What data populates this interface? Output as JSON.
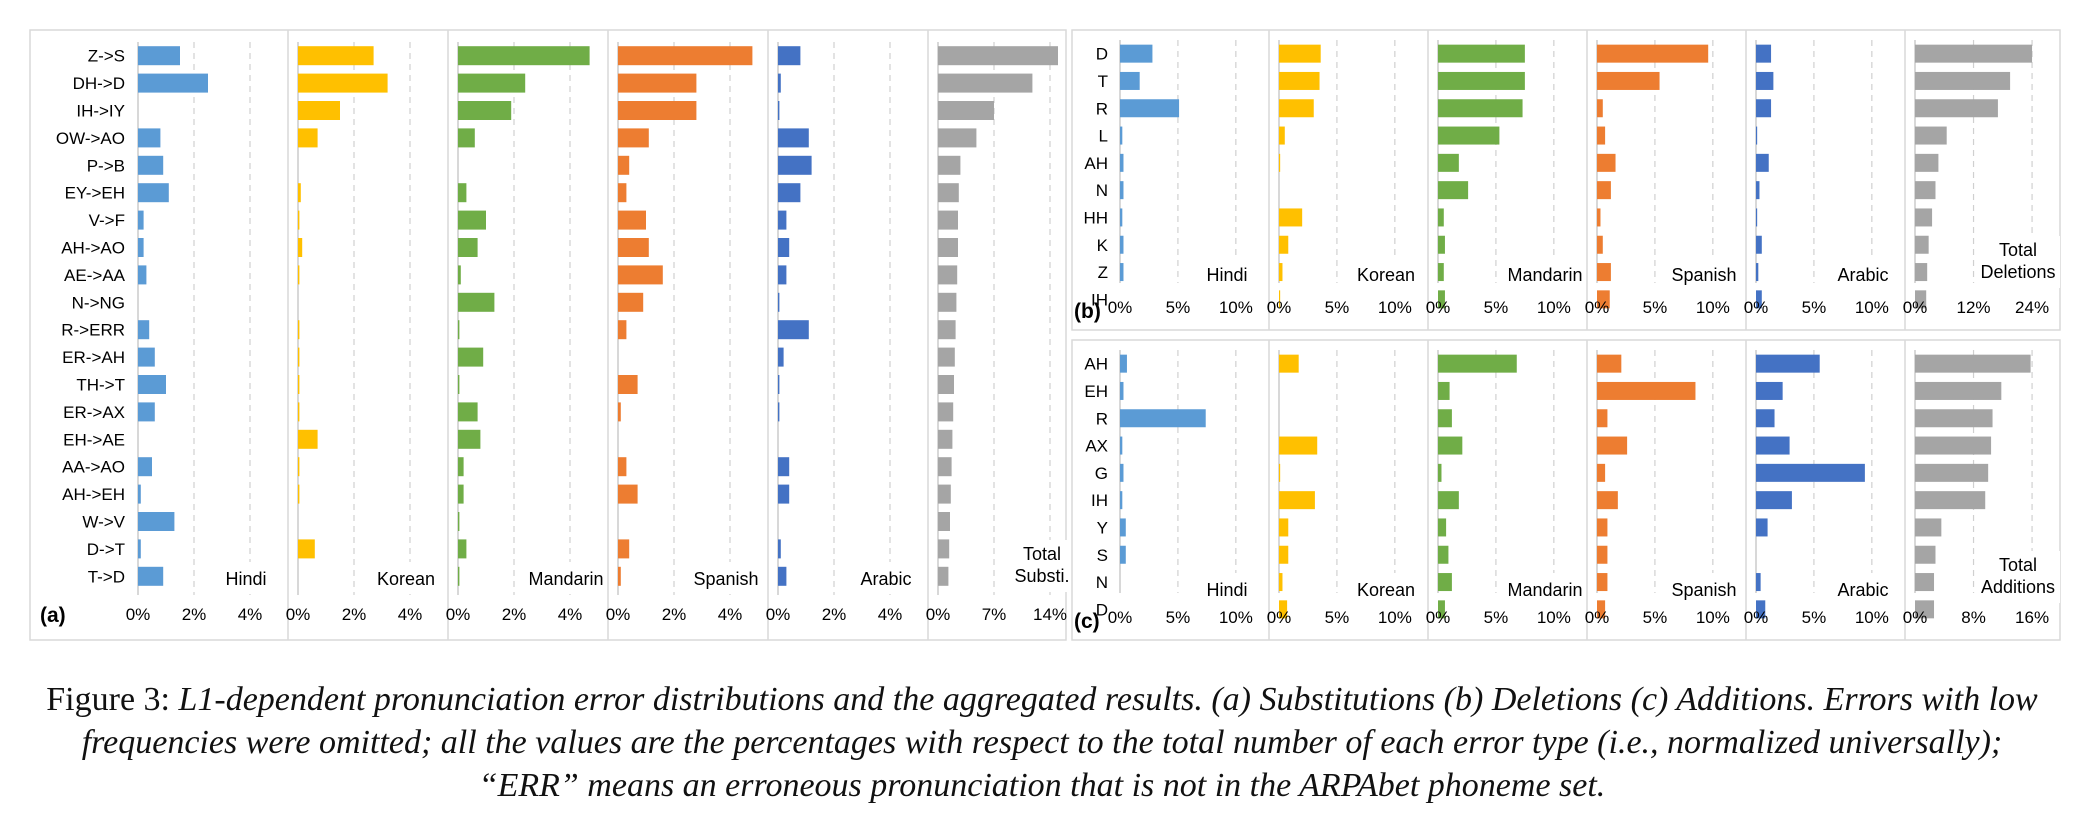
{
  "chart_data": [
    {
      "type": "bar",
      "orientation": "horizontal",
      "panel_label": "(a)",
      "categories": [
        "Z->S",
        "DH->D",
        "IH->IY",
        "OW->AO",
        "P->B",
        "EY->EH",
        "V->F",
        "AH->AO",
        "AE->AA",
        "N->NG",
        "R->ERR",
        "ER->AH",
        "TH->T",
        "ER->AX",
        "EH->AE",
        "AA->AO",
        "AH->EH",
        "W->V",
        "D->T",
        "T->D"
      ],
      "series": [
        {
          "name": "Hindi",
          "color": "#5B9BD5",
          "xlim": [
            0,
            5
          ],
          "ticks": [
            "0%",
            "2%",
            "4%"
          ],
          "tick_values": [
            0,
            2,
            4
          ],
          "values": [
            1.5,
            2.5,
            0,
            0.8,
            0.9,
            1.1,
            0.2,
            0.2,
            0.3,
            0,
            0.4,
            0.6,
            1.0,
            0.6,
            0,
            0.5,
            0.1,
            1.3,
            0.1,
            0.9
          ]
        },
        {
          "name": "Korean",
          "color": "#FFC000",
          "xlim": [
            0,
            5
          ],
          "ticks": [
            "0%",
            "2%",
            "4%"
          ],
          "tick_values": [
            0,
            2,
            4
          ],
          "values": [
            2.7,
            3.2,
            1.5,
            0.7,
            0,
            0.1,
            0.05,
            0.15,
            0.05,
            0,
            0.05,
            0.05,
            0.05,
            0.05,
            0.7,
            0.05,
            0.05,
            0,
            0.6,
            0
          ]
        },
        {
          "name": "Mandarin",
          "color": "#70AD47",
          "xlim": [
            0,
            5
          ],
          "ticks": [
            "0%",
            "2%",
            "4%"
          ],
          "tick_values": [
            0,
            2,
            4
          ],
          "values": [
            4.7,
            2.4,
            1.9,
            0.6,
            0,
            0.3,
            1.0,
            0.7,
            0.1,
            1.3,
            0.05,
            0.9,
            0.05,
            0.7,
            0.8,
            0.2,
            0.2,
            0.05,
            0.3,
            0.05
          ]
        },
        {
          "name": "Spanish",
          "color": "#ED7D31",
          "xlim": [
            0,
            5
          ],
          "ticks": [
            "0%",
            "2%",
            "4%"
          ],
          "tick_values": [
            0,
            2,
            4
          ],
          "values": [
            4.8,
            2.8,
            2.8,
            1.1,
            0.4,
            0.3,
            1.0,
            1.1,
            1.6,
            0.9,
            0.3,
            0,
            0.7,
            0.1,
            0,
            0.3,
            0.7,
            0,
            0.4,
            0.1
          ]
        },
        {
          "name": "Arabic",
          "color": "#4472C4",
          "xlim": [
            0,
            5
          ],
          "ticks": [
            "0%",
            "2%",
            "4%"
          ],
          "tick_values": [
            0,
            2,
            4
          ],
          "values": [
            0.8,
            0.1,
            0.05,
            1.1,
            1.2,
            0.8,
            0.3,
            0.4,
            0.3,
            0.05,
            1.1,
            0.2,
            0.05,
            0.05,
            0,
            0.4,
            0.4,
            0,
            0.1,
            0.3
          ]
        },
        {
          "name": "Total Substi.",
          "color": "#A5A5A5",
          "xlim": [
            0,
            17.5
          ],
          "ticks": [
            "0%",
            "7%",
            "14%"
          ],
          "tick_values": [
            0,
            7,
            14
          ],
          "values": [
            15.0,
            11.8,
            7.0,
            4.8,
            2.8,
            2.6,
            2.5,
            2.5,
            2.4,
            2.3,
            2.2,
            2.1,
            2.0,
            1.9,
            1.8,
            1.7,
            1.6,
            1.5,
            1.4,
            1.3
          ]
        }
      ]
    },
    {
      "type": "bar",
      "orientation": "horizontal",
      "panel_label": "(b)",
      "categories": [
        "D",
        "T",
        "R",
        "L",
        "AH",
        "N",
        "HH",
        "K",
        "Z",
        "IH"
      ],
      "series": [
        {
          "name": "Hindi",
          "color": "#5B9BD5",
          "xlim": [
            0,
            12
          ],
          "ticks": [
            "0%",
            "5%",
            "10%"
          ],
          "tick_values": [
            0,
            5,
            10
          ],
          "values": [
            2.8,
            1.7,
            5.1,
            0.2,
            0.3,
            0.3,
            0.2,
            0.3,
            0.3,
            0
          ]
        },
        {
          "name": "Korean",
          "color": "#FFC000",
          "xlim": [
            0,
            12
          ],
          "ticks": [
            "0%",
            "5%",
            "10%"
          ],
          "tick_values": [
            0,
            5,
            10
          ],
          "values": [
            3.6,
            3.5,
            3.0,
            0.5,
            0.1,
            0,
            2.0,
            0.8,
            0.3,
            0.1
          ]
        },
        {
          "name": "Mandarin",
          "color": "#70AD47",
          "xlim": [
            0,
            12
          ],
          "ticks": [
            "0%",
            "5%",
            "10%"
          ],
          "tick_values": [
            0,
            5,
            10
          ],
          "values": [
            7.5,
            7.5,
            7.3,
            5.3,
            1.8,
            2.6,
            0.5,
            0.6,
            0.5,
            0.6
          ]
        },
        {
          "name": "Spanish",
          "color": "#ED7D31",
          "xlim": [
            0,
            12
          ],
          "ticks": [
            "0%",
            "5%",
            "10%"
          ],
          "tick_values": [
            0,
            5,
            10
          ],
          "values": [
            9.6,
            5.4,
            0.5,
            0.7,
            1.6,
            1.2,
            0.3,
            0.5,
            1.2,
            1.1
          ]
        },
        {
          "name": "Arabic",
          "color": "#4472C4",
          "xlim": [
            0,
            12
          ],
          "ticks": [
            "0%",
            "5%",
            "10%"
          ],
          "tick_values": [
            0,
            5,
            10
          ],
          "values": [
            1.3,
            1.5,
            1.3,
            0.1,
            1.1,
            0.3,
            0.1,
            0.5,
            0.2,
            0.5
          ]
        },
        {
          "name": "Total Deletions",
          "color": "#A5A5A5",
          "xlim": [
            0,
            28.5
          ],
          "ticks": [
            "0%",
            "12%",
            "24%"
          ],
          "tick_values": [
            0,
            12,
            24
          ],
          "values": [
            24.0,
            19.5,
            17.0,
            6.5,
            4.8,
            4.2,
            3.5,
            2.8,
            2.5,
            2.3
          ]
        }
      ]
    },
    {
      "type": "bar",
      "orientation": "horizontal",
      "panel_label": "(c)",
      "categories": [
        "AH",
        "EH",
        "R",
        "AX",
        "G",
        "IH",
        "Y",
        "S",
        "N",
        "D"
      ],
      "series": [
        {
          "name": "Hindi",
          "color": "#5B9BD5",
          "xlim": [
            0,
            12
          ],
          "ticks": [
            "0%",
            "5%",
            "10%"
          ],
          "tick_values": [
            0,
            5,
            10
          ],
          "values": [
            0.6,
            0.3,
            7.4,
            0.2,
            0.3,
            0.2,
            0.5,
            0.5,
            0,
            0
          ]
        },
        {
          "name": "Korean",
          "color": "#FFC000",
          "xlim": [
            0,
            12
          ],
          "ticks": [
            "0%",
            "5%",
            "10%"
          ],
          "tick_values": [
            0,
            5,
            10
          ],
          "values": [
            1.7,
            0,
            0,
            3.3,
            0.1,
            3.1,
            0.8,
            0.8,
            0.3,
            0.7
          ]
        },
        {
          "name": "Mandarin",
          "color": "#70AD47",
          "xlim": [
            0,
            12
          ],
          "ticks": [
            "0%",
            "5%",
            "10%"
          ],
          "tick_values": [
            0,
            5,
            10
          ],
          "values": [
            6.8,
            1.0,
            1.2,
            2.1,
            0.3,
            1.8,
            0.7,
            0.9,
            1.2,
            0.6
          ]
        },
        {
          "name": "Spanish",
          "color": "#ED7D31",
          "xlim": [
            0,
            12
          ],
          "ticks": [
            "0%",
            "5%",
            "10%"
          ],
          "tick_values": [
            0,
            5,
            10
          ],
          "values": [
            2.1,
            8.5,
            0.9,
            2.6,
            0.7,
            1.8,
            0.9,
            0.9,
            0.9,
            0.7
          ]
        },
        {
          "name": "Arabic",
          "color": "#4472C4",
          "xlim": [
            0,
            12
          ],
          "ticks": [
            "0%",
            "5%",
            "10%"
          ],
          "tick_values": [
            0,
            5,
            10
          ],
          "values": [
            5.5,
            2.3,
            1.6,
            2.9,
            9.4,
            3.1,
            1.0,
            0,
            0.4,
            0.8
          ]
        },
        {
          "name": "Total Additions",
          "color": "#A5A5A5",
          "xlim": [
            0,
            19
          ],
          "ticks": [
            "0%",
            "8%",
            "16%"
          ],
          "tick_values": [
            0,
            8,
            16
          ],
          "values": [
            15.8,
            11.8,
            10.6,
            10.4,
            10.0,
            9.6,
            3.6,
            2.8,
            2.6,
            2.6
          ]
        }
      ]
    }
  ],
  "caption": {
    "prefix": "Figure 3: ",
    "body": "L1-dependent pronunciation error distributions and the aggregated results. (a) Substitutions (b) Deletions (c) Additions. Errors with low frequencies were omitted; all the values are the percentages with respect to the total number of each error type (i.e., normalized universally); “ERR” means an erroneous pronunciation that is not in the ARPAbet phoneme set."
  }
}
